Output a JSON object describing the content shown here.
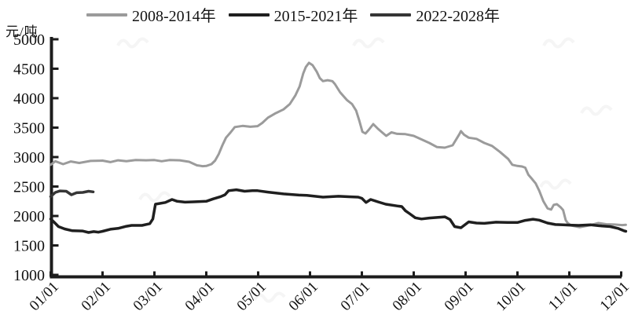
{
  "unit_label": "元/吨",
  "axis_color": "#1c1c1c",
  "legend": [
    {
      "label": "2008-2014年",
      "color": "#9b9b9b"
    },
    {
      "label": "2015-2021年",
      "color": "#1f1f1f"
    },
    {
      "label": "2022-2028年",
      "color": "#363636"
    }
  ],
  "chart_data": {
    "type": "line",
    "title": "",
    "xlabel": "",
    "ylabel": "元/吨",
    "ylim": [
      1000,
      5000
    ],
    "yticks": [
      1000,
      1500,
      2000,
      2500,
      3000,
      3500,
      4000,
      4500,
      5000
    ],
    "xticks": [
      "01/01",
      "02/01",
      "03/01",
      "04/01",
      "05/01",
      "06/01",
      "07/01",
      "08/01",
      "09/01",
      "10/01",
      "11/01",
      "12/01"
    ],
    "x_unit": "months since 01/01 (0 = 01/01, 11 = 12/01)",
    "grid": false,
    "legend_position": "top",
    "series": [
      {
        "name": "2008-2014年",
        "color": "#9b9b9b",
        "width": 3,
        "points": [
          [
            0,
            2870
          ],
          [
            0.09,
            2930
          ],
          [
            0.24,
            2880
          ],
          [
            0.39,
            2925
          ],
          [
            0.55,
            2900
          ],
          [
            0.77,
            2935
          ],
          [
            1,
            2940
          ],
          [
            1.15,
            2915
          ],
          [
            1.3,
            2945
          ],
          [
            1.46,
            2930
          ],
          [
            1.64,
            2950
          ],
          [
            1.84,
            2945
          ],
          [
            2,
            2950
          ],
          [
            2.14,
            2930
          ],
          [
            2.29,
            2950
          ],
          [
            2.49,
            2945
          ],
          [
            2.67,
            2920
          ],
          [
            2.82,
            2860
          ],
          [
            2.93,
            2845
          ],
          [
            3,
            2850
          ],
          [
            3.1,
            2880
          ],
          [
            3.17,
            2940
          ],
          [
            3.24,
            3050
          ],
          [
            3.31,
            3200
          ],
          [
            3.38,
            3330
          ],
          [
            3.47,
            3420
          ],
          [
            3.55,
            3510
          ],
          [
            3.7,
            3530
          ],
          [
            3.85,
            3515
          ],
          [
            3.99,
            3525
          ],
          [
            4.08,
            3580
          ],
          [
            4.19,
            3670
          ],
          [
            4.34,
            3745
          ],
          [
            4.49,
            3810
          ],
          [
            4.61,
            3900
          ],
          [
            4.72,
            4050
          ],
          [
            4.8,
            4200
          ],
          [
            4.87,
            4420
          ],
          [
            4.92,
            4530
          ],
          [
            4.98,
            4600
          ],
          [
            5.05,
            4560
          ],
          [
            5.13,
            4450
          ],
          [
            5.19,
            4340
          ],
          [
            5.25,
            4290
          ],
          [
            5.34,
            4305
          ],
          [
            5.43,
            4290
          ],
          [
            5.48,
            4240
          ],
          [
            5.58,
            4100
          ],
          [
            5.71,
            3970
          ],
          [
            5.81,
            3900
          ],
          [
            5.89,
            3790
          ],
          [
            5.95,
            3620
          ],
          [
            6.01,
            3430
          ],
          [
            6.07,
            3400
          ],
          [
            6.13,
            3460
          ],
          [
            6.22,
            3560
          ],
          [
            6.31,
            3480
          ],
          [
            6.39,
            3420
          ],
          [
            6.47,
            3360
          ],
          [
            6.57,
            3420
          ],
          [
            6.68,
            3395
          ],
          [
            6.84,
            3390
          ],
          [
            7,
            3360
          ],
          [
            7.15,
            3300
          ],
          [
            7.3,
            3240
          ],
          [
            7.45,
            3170
          ],
          [
            7.6,
            3160
          ],
          [
            7.75,
            3200
          ],
          [
            7.88,
            3390
          ],
          [
            7.91,
            3440
          ],
          [
            7.97,
            3380
          ],
          [
            8.06,
            3330
          ],
          [
            8.21,
            3310
          ],
          [
            8.36,
            3240
          ],
          [
            8.51,
            3190
          ],
          [
            8.66,
            3090
          ],
          [
            8.82,
            2970
          ],
          [
            8.9,
            2870
          ],
          [
            9,
            2850
          ],
          [
            9.09,
            2840
          ],
          [
            9.15,
            2820
          ],
          [
            9.21,
            2700
          ],
          [
            9.27,
            2640
          ],
          [
            9.35,
            2555
          ],
          [
            9.42,
            2430
          ],
          [
            9.5,
            2250
          ],
          [
            9.58,
            2130
          ],
          [
            9.65,
            2110
          ],
          [
            9.7,
            2190
          ],
          [
            9.76,
            2200
          ],
          [
            9.83,
            2150
          ],
          [
            9.88,
            2100
          ],
          [
            9.93,
            1930
          ],
          [
            9.97,
            1880
          ],
          [
            10.03,
            1840
          ],
          [
            10.2,
            1810
          ],
          [
            10.41,
            1845
          ],
          [
            10.56,
            1880
          ],
          [
            10.71,
            1860
          ],
          [
            10.87,
            1855
          ],
          [
            11.02,
            1845
          ],
          [
            11.09,
            1850
          ]
        ]
      },
      {
        "name": "2015-2021年",
        "color": "#1f1f1f",
        "width": 3.5,
        "points": [
          [
            0,
            1950
          ],
          [
            0.06,
            1900
          ],
          [
            0.15,
            1820
          ],
          [
            0.27,
            1780
          ],
          [
            0.42,
            1750
          ],
          [
            0.61,
            1745
          ],
          [
            0.73,
            1720
          ],
          [
            0.83,
            1735
          ],
          [
            0.92,
            1725
          ],
          [
            1,
            1740
          ],
          [
            1.15,
            1775
          ],
          [
            1.3,
            1790
          ],
          [
            1.46,
            1825
          ],
          [
            1.56,
            1840
          ],
          [
            1.76,
            1840
          ],
          [
            1.91,
            1870
          ],
          [
            1.97,
            1950
          ],
          [
            2.02,
            2200
          ],
          [
            2.21,
            2230
          ],
          [
            2.34,
            2280
          ],
          [
            2.44,
            2250
          ],
          [
            2.59,
            2235
          ],
          [
            2.75,
            2240
          ],
          [
            2.88,
            2245
          ],
          [
            3,
            2250
          ],
          [
            3.13,
            2290
          ],
          [
            3.28,
            2330
          ],
          [
            3.36,
            2360
          ],
          [
            3.43,
            2430
          ],
          [
            3.58,
            2445
          ],
          [
            3.74,
            2420
          ],
          [
            3.89,
            2430
          ],
          [
            3.99,
            2430
          ],
          [
            4.19,
            2405
          ],
          [
            4.49,
            2375
          ],
          [
            4.79,
            2355
          ],
          [
            4.94,
            2350
          ],
          [
            5.25,
            2320
          ],
          [
            5.55,
            2335
          ],
          [
            5.79,
            2325
          ],
          [
            5.93,
            2320
          ],
          [
            6,
            2300
          ],
          [
            6.08,
            2230
          ],
          [
            6.17,
            2280
          ],
          [
            6.31,
            2240
          ],
          [
            6.46,
            2200
          ],
          [
            6.69,
            2170
          ],
          [
            6.77,
            2160
          ],
          [
            6.84,
            2090
          ],
          [
            6.92,
            2040
          ],
          [
            7.03,
            1970
          ],
          [
            7.15,
            1950
          ],
          [
            7.3,
            1965
          ],
          [
            7.45,
            1975
          ],
          [
            7.6,
            1985
          ],
          [
            7.7,
            1940
          ],
          [
            7.79,
            1820
          ],
          [
            7.91,
            1800
          ],
          [
            8.06,
            1900
          ],
          [
            8.21,
            1880
          ],
          [
            8.36,
            1875
          ],
          [
            8.59,
            1895
          ],
          [
            8.81,
            1890
          ],
          [
            9,
            1890
          ],
          [
            9.15,
            1925
          ],
          [
            9.3,
            1945
          ],
          [
            9.42,
            1930
          ],
          [
            9.58,
            1880
          ],
          [
            9.73,
            1855
          ],
          [
            9.88,
            1850
          ],
          [
            10,
            1845
          ],
          [
            10.18,
            1840
          ],
          [
            10.41,
            1850
          ],
          [
            10.63,
            1830
          ],
          [
            10.79,
            1820
          ],
          [
            10.94,
            1790
          ],
          [
            11.05,
            1750
          ],
          [
            11.09,
            1740
          ]
        ]
      },
      {
        "name": "2022-2028年",
        "color": "#363636",
        "width": 3.5,
        "points": [
          [
            0,
            2330
          ],
          [
            0.09,
            2400
          ],
          [
            0.18,
            2425
          ],
          [
            0.3,
            2420
          ],
          [
            0.4,
            2360
          ],
          [
            0.5,
            2395
          ],
          [
            0.62,
            2400
          ],
          [
            0.73,
            2420
          ],
          [
            0.82,
            2410
          ]
        ]
      }
    ]
  }
}
